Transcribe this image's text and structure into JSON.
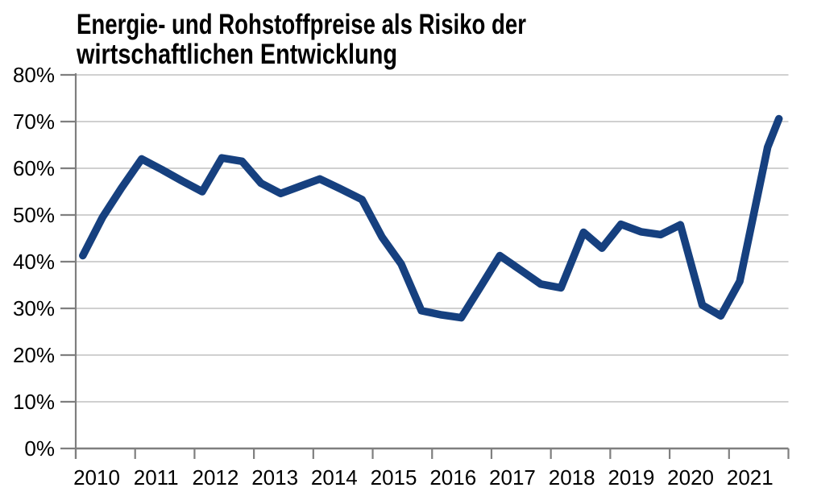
{
  "title": {
    "line1": "Energie- und Rohstoffpreise als Risiko der",
    "line2": "wirtschaftlichen Entwicklung"
  },
  "chart_data": {
    "type": "line",
    "title": "Energie- und Rohstoffpreise als Risiko der wirtschaftlichen Entwicklung",
    "xlabel": "",
    "ylabel": "",
    "xlim": [
      2010,
      2022
    ],
    "ylim": [
      0,
      80
    ],
    "grid": "horizontal",
    "legend": "none",
    "x_tick_labels": [
      "2010",
      "2011",
      "2012",
      "2013",
      "2014",
      "2015",
      "2016",
      "2017",
      "2018",
      "2019",
      "2020",
      "2021"
    ],
    "y_ticks": [
      0,
      10,
      20,
      30,
      40,
      50,
      60,
      70,
      80
    ],
    "y_tick_suffix": "%",
    "series": [
      {
        "points": [
          [
            2010.12,
            41.3
          ],
          [
            2010.45,
            49.5
          ],
          [
            2010.77,
            55.8
          ],
          [
            2011.11,
            62.0
          ],
          [
            2011.45,
            59.7
          ],
          [
            2011.79,
            57.3
          ],
          [
            2012.13,
            55.0
          ],
          [
            2012.46,
            62.2
          ],
          [
            2012.8,
            61.5
          ],
          [
            2013.12,
            56.8
          ],
          [
            2013.45,
            54.6
          ],
          [
            2013.79,
            56.2
          ],
          [
            2014.11,
            57.7
          ],
          [
            2014.44,
            55.7
          ],
          [
            2014.82,
            53.3
          ],
          [
            2015.16,
            45.2
          ],
          [
            2015.48,
            39.5
          ],
          [
            2015.82,
            29.5
          ],
          [
            2016.16,
            28.6
          ],
          [
            2016.49,
            28.0
          ],
          [
            2016.83,
            34.9
          ],
          [
            2017.14,
            41.3
          ],
          [
            2017.49,
            38.2
          ],
          [
            2017.83,
            35.2
          ],
          [
            2018.17,
            34.4
          ],
          [
            2018.55,
            46.3
          ],
          [
            2018.86,
            42.9
          ],
          [
            2019.18,
            48.0
          ],
          [
            2019.52,
            46.4
          ],
          [
            2019.85,
            45.8
          ],
          [
            2020.18,
            47.9
          ],
          [
            2020.55,
            30.7
          ],
          [
            2020.86,
            28.4
          ],
          [
            2021.18,
            35.8
          ],
          [
            2021.65,
            64.5
          ],
          [
            2021.84,
            70.6
          ]
        ]
      }
    ],
    "colors": {
      "line": "#16407F",
      "grid": "#C9C9C9",
      "axis": "#7F7F7F",
      "text": "#000000",
      "background": "#FFFFFF"
    }
  }
}
